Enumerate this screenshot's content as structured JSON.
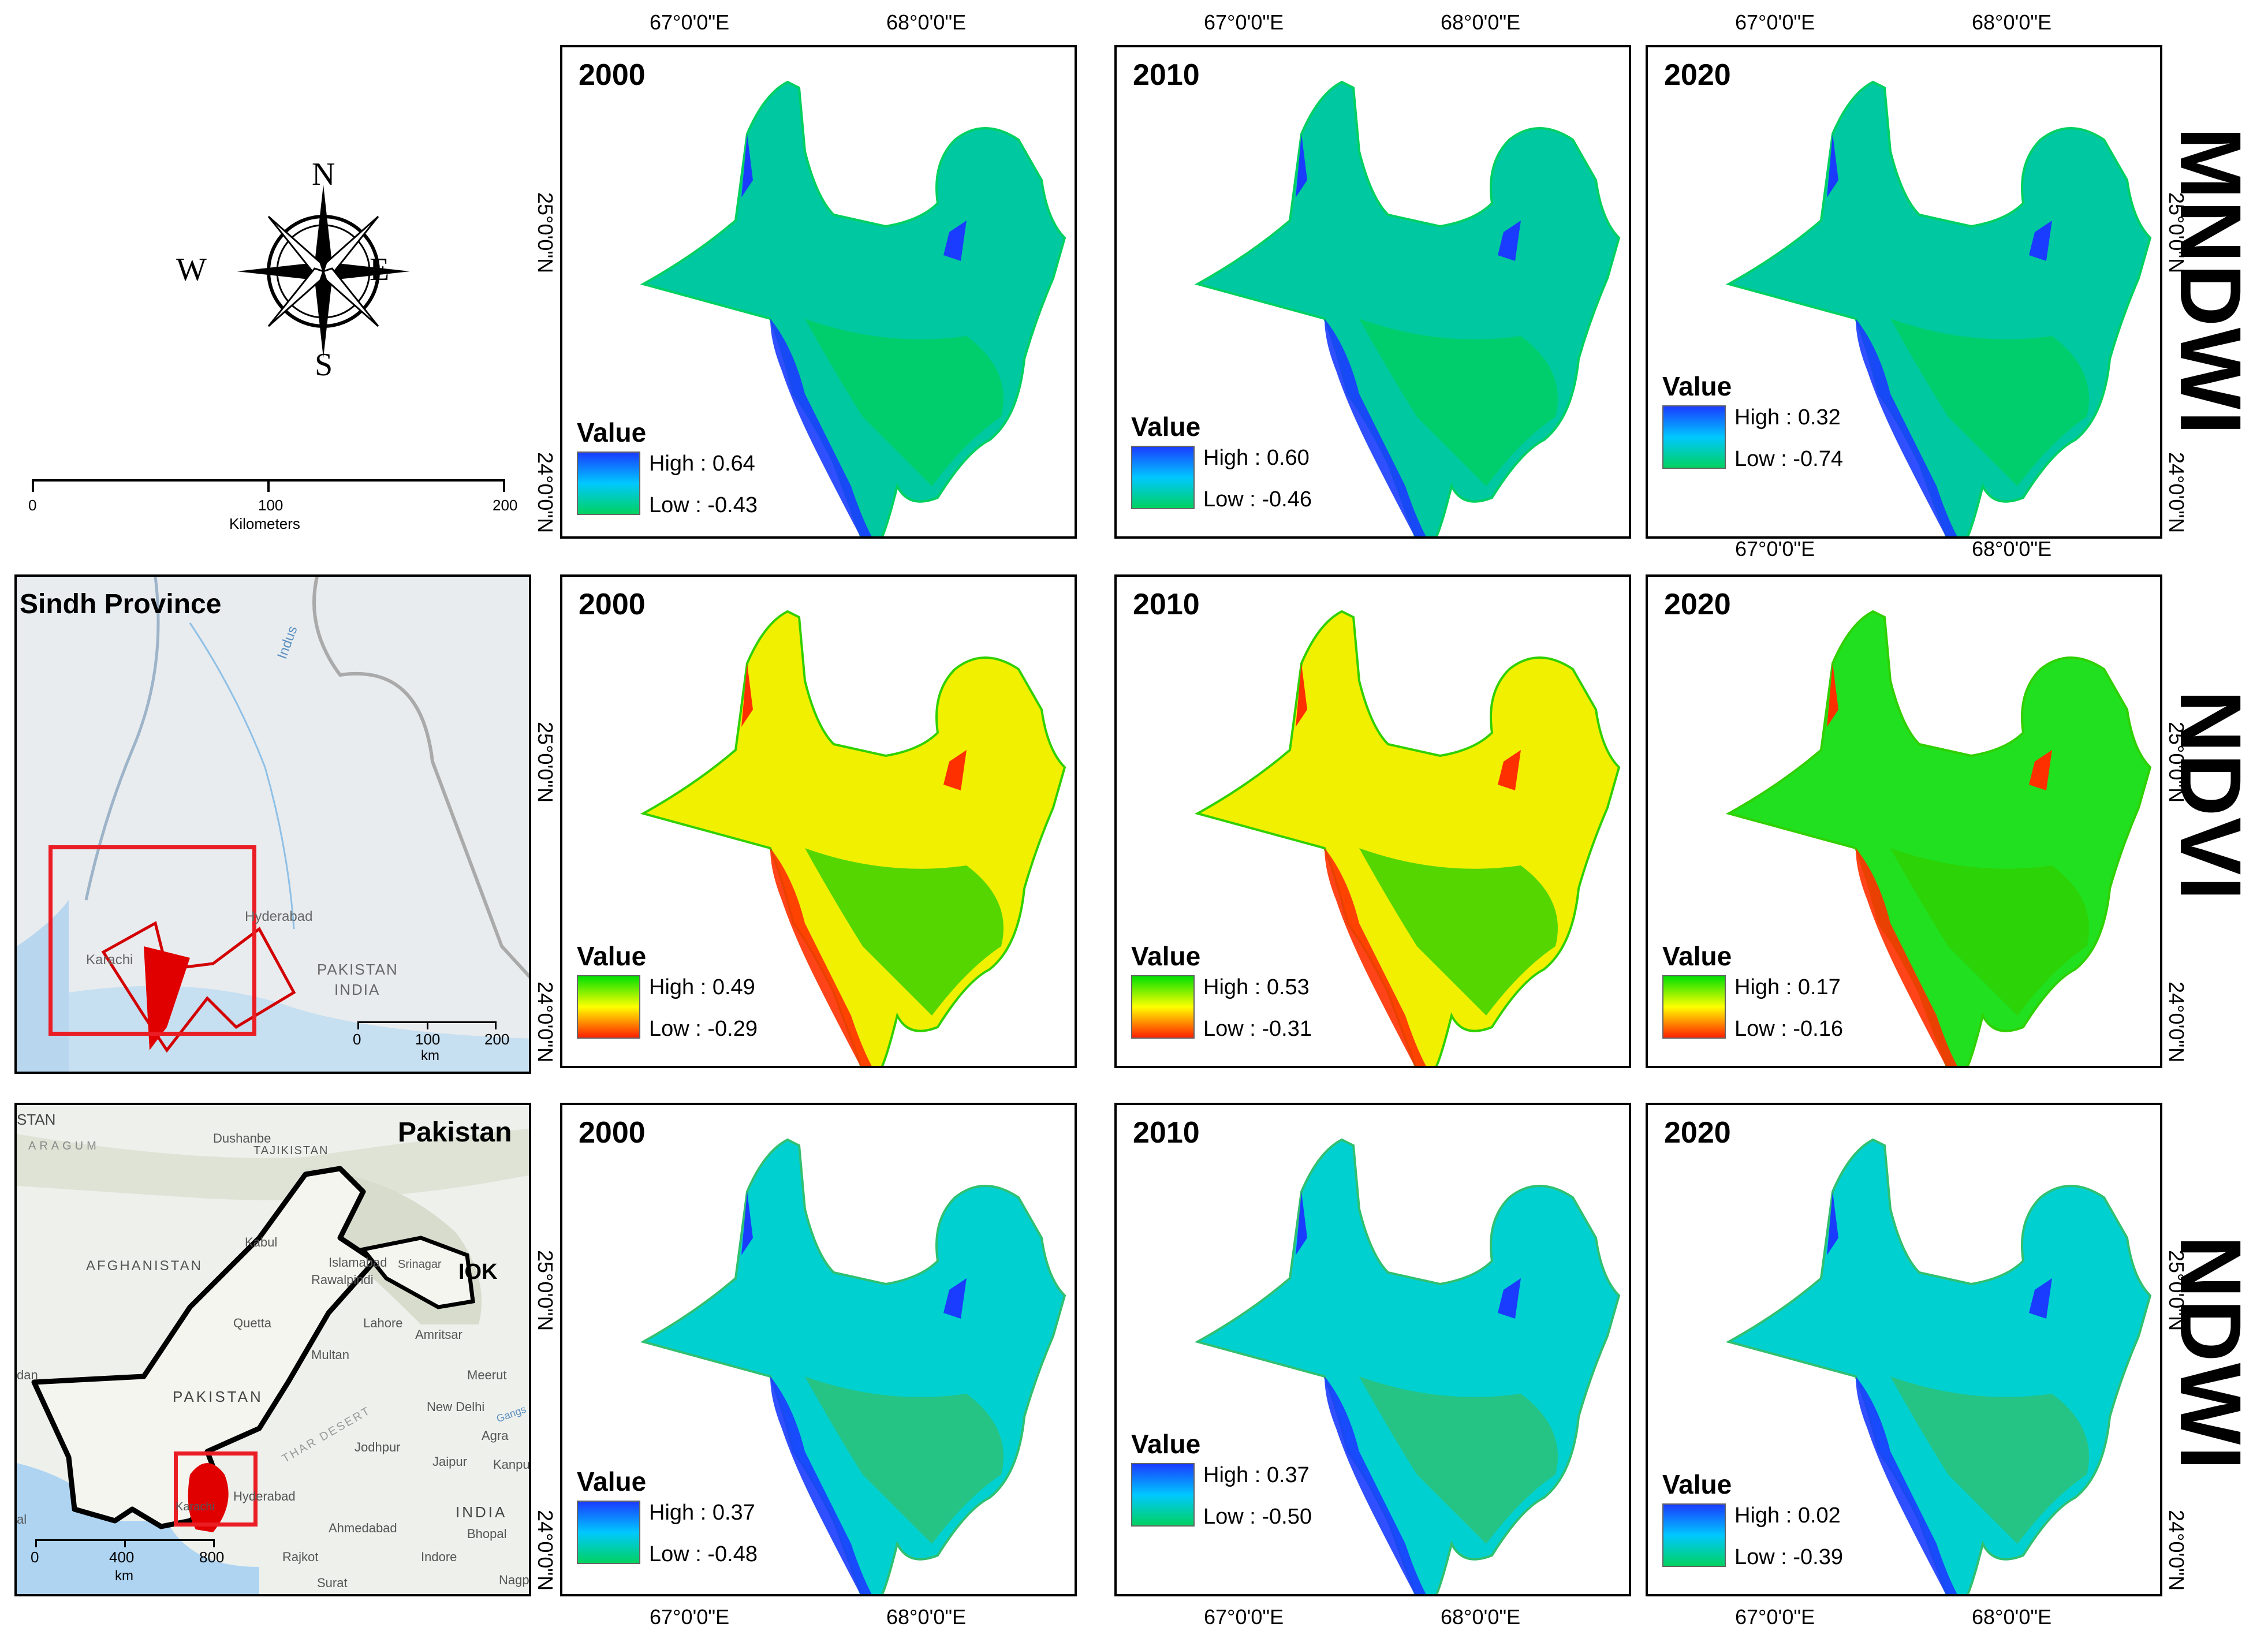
{
  "column_labels_lon": [
    "67°0'0\"E",
    "68°0'0\"E"
  ],
  "row_lat_labels": [
    "25°0'0\"N",
    "24°0'0\"N"
  ],
  "legend_title": "Value",
  "rows": [
    {
      "index": "MNDWI",
      "panels": [
        {
          "year": "2000",
          "high": "High : 0.64",
          "low": "Low : -0.43"
        },
        {
          "year": "2010",
          "high": "High : 0.60",
          "low": "Low : -0.46"
        },
        {
          "year": "2020",
          "high": "High : 0.32",
          "low": "Low : -0.74"
        }
      ]
    },
    {
      "index": "NDVI",
      "panels": [
        {
          "year": "2000",
          "high": "High : 0.49",
          "low": "Low : -0.29"
        },
        {
          "year": "2010",
          "high": "High : 0.53",
          "low": "Low : -0.31"
        },
        {
          "year": "2020",
          "high": "High : 0.17",
          "low": "Low : -0.16"
        }
      ]
    },
    {
      "index": "NDWI",
      "panels": [
        {
          "year": "2000",
          "high": "High : 0.37",
          "low": "Low : -0.48"
        },
        {
          "year": "2010",
          "high": "High : 0.37",
          "low": "Low : -0.50"
        },
        {
          "year": "2020",
          "high": "High : 0.02",
          "low": "Low : -0.39"
        }
      ]
    }
  ],
  "compass": {
    "n": "N",
    "s": "S",
    "e": "E",
    "w": "W"
  },
  "scalebar_main": {
    "ticks": [
      "0",
      "100",
      "200"
    ],
    "unit": "Kilometers"
  },
  "sindh_inset": {
    "title": "Sindh Province",
    "places": [
      "Karachi",
      "Hyderabad",
      "PAKISTAN",
      "INDIA",
      "Indus"
    ],
    "scale_ticks": [
      "0",
      "100",
      "200"
    ],
    "scale_unit": "km"
  },
  "pakistan_inset": {
    "title": "Pakistan",
    "places": [
      "STAN",
      "ARAGUM",
      "Dushanbe",
      "TAJIKISTAN",
      "AFGHANISTAN",
      "Kabul",
      "Islamabad",
      "Rawalpindi",
      "Srinagar",
      "IOK",
      "Lahore",
      "Amritsar",
      "Quetta",
      "Multan",
      "PAKISTAN",
      "New Delhi",
      "Meerut",
      "Agra",
      "Jodhpur",
      "Jaipur",
      "Kanpur",
      "THAR DESERT",
      "Hyderabad",
      "Karachi",
      "Ahmedabad",
      "Bhopal",
      "INDIA",
      "Rajkot",
      "Indore",
      "Surat",
      "Nagpur",
      "Gangs",
      "dan",
      "al"
    ],
    "scale_ticks": [
      "0",
      "400",
      "800"
    ],
    "scale_unit": "km"
  },
  "colors": {
    "water_high": "#1a3cff",
    "water_mid": "#00c8ff",
    "water_low": "#00d260",
    "veg_high": "#00e000",
    "veg_mid": "#ffff00",
    "veg_low": "#ff2000"
  }
}
